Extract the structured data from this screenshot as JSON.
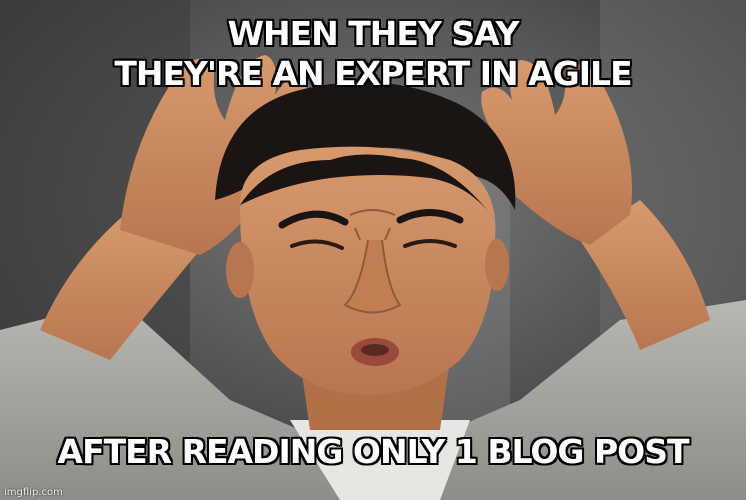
{
  "meme": {
    "top_text_line1": "WHEN THEY SAY",
    "top_text_line2": "THEY'RE AN EXPERT IN AGILE",
    "bottom_text": "AFTER READING ONLY 1 BLOG POST",
    "watermark": "imgflip.com"
  },
  "colors": {
    "caption_fill": "#ffffff",
    "caption_outline": "#000000",
    "background_gray": "#5a5a5a",
    "jacket_gray": "#a6a6a2",
    "skin": "#c9885c",
    "hair": "#1a1412"
  }
}
